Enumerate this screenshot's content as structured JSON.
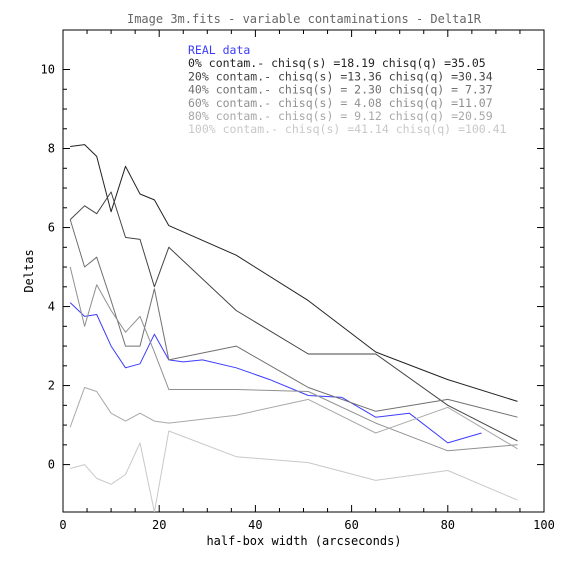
{
  "chart_data": {
    "type": "line",
    "title": "Image 3m.fits - variable contaminations - Delta1R",
    "xlabel": "half-box width (arcseconds)",
    "ylabel": "Deltas",
    "xlim": [
      0,
      100
    ],
    "ylim": [
      -1.2,
      11
    ],
    "xticks": [
      0,
      20,
      40,
      60,
      80,
      100
    ],
    "yticks": [
      0,
      2,
      4,
      6,
      8,
      10
    ],
    "x_tick_labels": [
      "0",
      "20",
      "40",
      "60",
      "80",
      "100"
    ],
    "y_tick_labels": [
      "0",
      "2",
      "4",
      "6",
      "8",
      "10"
    ],
    "grid": false,
    "legend_position": "top-center",
    "series": [
      {
        "name": "REAL data",
        "color": "#3c3cff",
        "x": [
          1.5,
          4.5,
          7,
          10,
          13,
          16,
          19,
          22,
          25,
          29,
          36,
          43,
          51,
          58,
          65,
          72,
          80,
          87
        ],
        "y": [
          4.1,
          3.75,
          3.8,
          3.0,
          2.45,
          2.55,
          3.3,
          2.65,
          2.6,
          2.65,
          2.45,
          2.15,
          1.75,
          1.7,
          1.2,
          1.3,
          0.55,
          0.8
        ]
      },
      {
        "name": "0% contam.- chisq(s) =18.19 chisq(q) =35.05",
        "color": "#222222",
        "x": [
          1.5,
          4.5,
          7,
          10,
          13,
          16,
          19,
          22,
          36,
          51,
          65,
          80,
          94.5
        ],
        "y": [
          8.05,
          8.1,
          7.8,
          6.4,
          7.55,
          6.85,
          6.7,
          6.05,
          5.3,
          4.15,
          2.85,
          2.15,
          1.6
        ]
      },
      {
        "name": "20% contam.- chisq(s) =13.36 chisq(q) =30.34",
        "color": "#444444",
        "x": [
          1.5,
          4.5,
          7,
          10,
          13,
          16,
          19,
          22,
          36,
          51,
          65,
          80,
          94.5
        ],
        "y": [
          6.2,
          6.55,
          6.35,
          6.9,
          5.75,
          5.7,
          4.5,
          5.5,
          3.9,
          2.8,
          2.8,
          1.5,
          0.6
        ]
      },
      {
        "name": "40% contam.- chisq(s) = 2.30 chisq(q) = 7.37",
        "color": "#707070",
        "x": [
          1.5,
          4.5,
          7,
          10,
          13,
          16,
          19,
          22,
          36,
          51,
          65,
          80,
          94.5
        ],
        "y": [
          6.2,
          5.0,
          5.25,
          4.15,
          3.0,
          3.0,
          4.45,
          2.65,
          3.0,
          1.95,
          1.35,
          1.65,
          1.2
        ]
      },
      {
        "name": "60% contam.- chisq(s) = 4.08 chisq(q) =11.07",
        "color": "#909090",
        "x": [
          1.5,
          4.5,
          7,
          10,
          13,
          16,
          19,
          22,
          36,
          51,
          65,
          80,
          94.5
        ],
        "y": [
          5.0,
          3.5,
          4.55,
          3.9,
          3.35,
          3.75,
          2.85,
          1.9,
          1.9,
          1.85,
          1.05,
          0.35,
          0.5
        ]
      },
      {
        "name": "80% contam.- chisq(s) = 9.12 chisq(q) =20.59",
        "color": "#a8a8a8",
        "x": [
          1.5,
          4.5,
          7,
          10,
          13,
          16,
          19,
          22,
          36,
          51,
          65,
          80,
          94.5
        ],
        "y": [
          0.95,
          1.95,
          1.85,
          1.3,
          1.1,
          1.3,
          1.1,
          1.05,
          1.25,
          1.65,
          0.8,
          1.45,
          0.4
        ]
      },
      {
        "name": "100% contam.- chisq(s) =41.14 chisq(q) =100.41",
        "color": "#c8c8c8",
        "x": [
          1.5,
          4.5,
          7,
          10,
          13,
          16,
          19,
          22,
          36,
          51,
          65,
          80,
          94.5
        ],
        "y": [
          -0.1,
          0.0,
          -0.35,
          -0.5,
          -0.25,
          0.55,
          -1.2,
          0.85,
          0.2,
          0.05,
          -0.4,
          -0.15,
          -0.9
        ]
      }
    ]
  }
}
